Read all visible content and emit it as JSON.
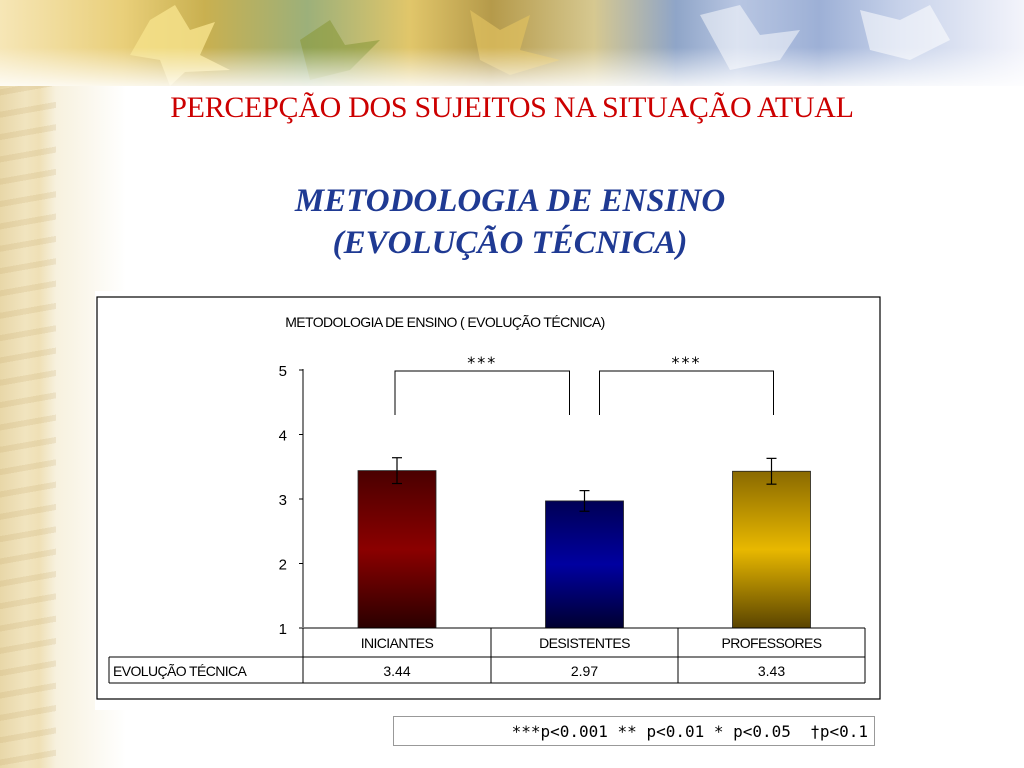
{
  "slide": {
    "title": "PERCEPÇÃO DOS SUJEITOS NA SITUAÇÃO ATUAL",
    "subtitle_line1": "METODOLOGIA DE ENSINO",
    "subtitle_line2": "(EVOLUÇÃO TÉCNICA)",
    "significance_legend": "***p<0.001 ** p<0.01 * p<0.05  †p<0.1"
  },
  "colors": {
    "title": "#cc0000",
    "subtitle": "#1f3a93",
    "bar_iniciantes": "#8b0000",
    "bar_desistentes": "#00008b",
    "bar_professores": "#d4a800"
  },
  "chart_data": {
    "type": "bar",
    "title": "METODOLOGIA DE ENSINO ( EVOLUÇÃO TÉCNICA)",
    "categories": [
      "INICIANTES",
      "DESISTENTES",
      "PROFESSORES"
    ],
    "series": [
      {
        "name": "EVOLUÇÃO TÉCNICA",
        "values": [
          3.44,
          2.97,
          3.43
        ],
        "value_labels": [
          "3.44",
          "2.97",
          "3.43"
        ]
      }
    ],
    "error": [
      0.2,
      0.16,
      0.2
    ],
    "ylim": [
      1,
      5
    ],
    "yticks": [
      1,
      2,
      3,
      4,
      5
    ],
    "grid": false,
    "data_table": true,
    "significance": [
      {
        "between": [
          "INICIANTES",
          "DESISTENTES"
        ],
        "label": "***"
      },
      {
        "between": [
          "DESISTENTES",
          "PROFESSORES"
        ],
        "label": "***"
      }
    ]
  }
}
